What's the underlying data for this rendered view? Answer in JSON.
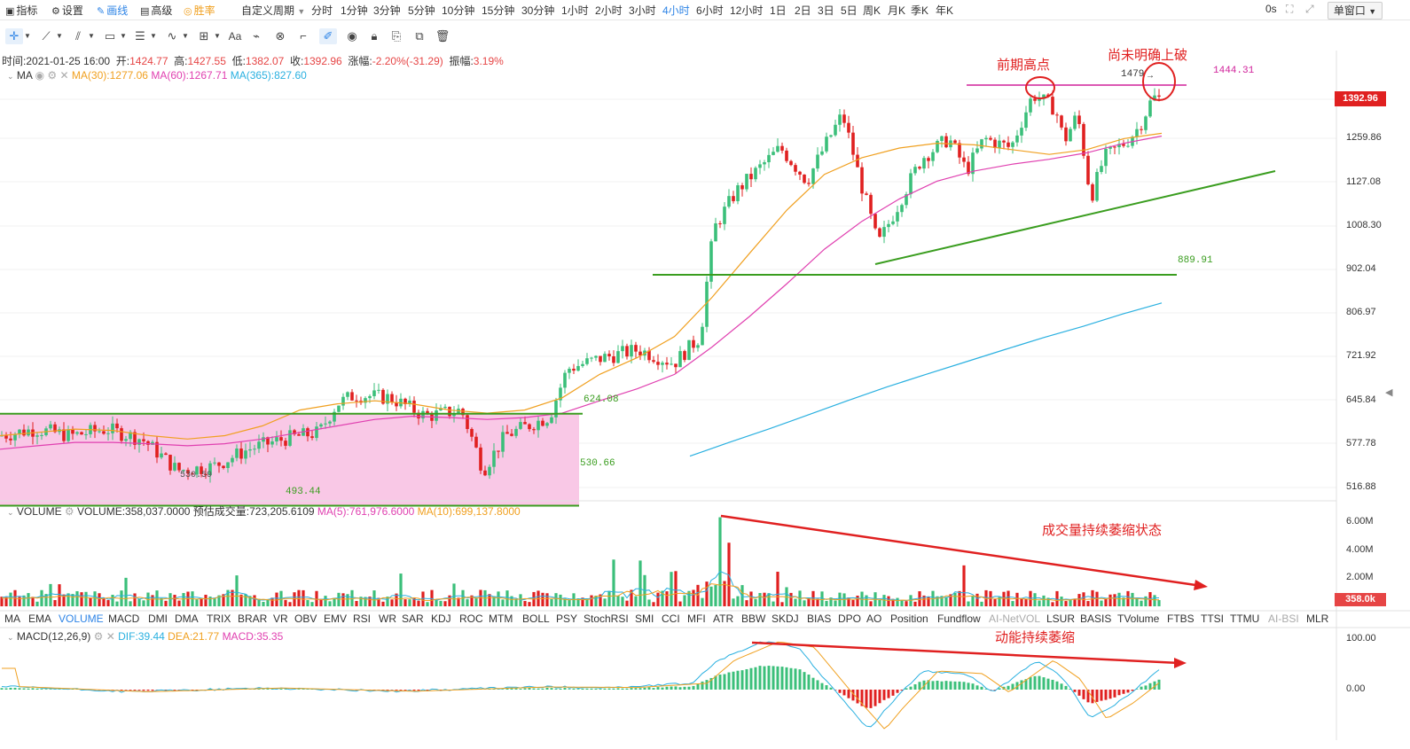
{
  "toolbar": {
    "indicator": "指标",
    "settings": "设置",
    "draw": "画线",
    "advanced": "高级",
    "winrate": "胜率",
    "custom_period": "自定义周期",
    "periods": [
      "分时",
      "1分钟",
      "3分钟",
      "5分钟",
      "10分钟",
      "15分钟",
      "30分钟",
      "1小时",
      "2小时",
      "3小时",
      "4小时",
      "6小时",
      "12小时",
      "1日",
      "2日",
      "3日",
      "5日",
      "周K",
      "月K",
      "季K",
      "年K"
    ],
    "active_period": "4小时",
    "countdown": "0s",
    "window_mode": "单窗口"
  },
  "ohlc": {
    "time_label": "时间:",
    "time": "2021-01-25 16:00",
    "open_label": "开:",
    "open": "1424.77",
    "high_label": "高:",
    "high": "1427.55",
    "low_label": "低:",
    "low": "1382.07",
    "close_label": "收:",
    "close": "1392.96",
    "change_label": "涨幅:",
    "change": "-2.20%(-31.29)",
    "amp_label": "振幅:",
    "amp": "3.19%"
  },
  "ma_legend": {
    "name": "MA",
    "ma30": "MA(30):1277.06",
    "ma60": "MA(60):1267.71",
    "ma365": "MA(365):827.60"
  },
  "volume_legend": {
    "name": "VOLUME",
    "volume": "VOLUME:358,037.0000",
    "est": "预估成交量:723,205.6109",
    "ma5": "MA(5):761,976.6000",
    "ma10": "MA(10):699,137.8000"
  },
  "macd_legend": {
    "name": "MACD(12,26,9)",
    "dif": "DIF:39.44",
    "dea": "DEA:21.77",
    "macd": "MACD:35.35"
  },
  "indicators": [
    "MA",
    "EMA",
    "VOLUME",
    "MACD",
    "DMI",
    "DMA",
    "TRIX",
    "BRAR",
    "VR",
    "OBV",
    "EMV",
    "RSI",
    "WR",
    "SAR",
    "KDJ",
    "ROC",
    "MTM",
    "BOLL",
    "PSY",
    "StochRSI",
    "SMI",
    "CCI",
    "MFI",
    "ATR",
    "BBW",
    "SKDJ",
    "BIAS",
    "DPO",
    "AO",
    "Position",
    "Fundflow",
    "AI-NetVOL",
    "LSUR",
    "BASIS",
    "TVolume",
    "FTBS",
    "TTSI",
    "TTMU",
    "AI-BSI",
    "MLR"
  ],
  "active_indicator": "VOLUME",
  "annotations": {
    "prev_high": "前期高点",
    "not_broken": "尚未明确上破",
    "volume_shrink": "成交量持续萎缩状态",
    "momentum_shrink": "动能持续萎缩",
    "marker_1479": "1479",
    "level_1444": "1444.31",
    "level_889": "889.91",
    "level_624": "624.08",
    "level_530": "530.66",
    "level_493": "493.44",
    "level_530b": "530.59"
  },
  "colors": {
    "up": "#3bbf7a",
    "down": "#e02020",
    "ma30": "#f0a020",
    "ma60": "#e040b0",
    "ma365": "#2ab0e0",
    "accent": "#2e84e6"
  },
  "chart_data": [
    {
      "type": "candlestick",
      "title": "",
      "y_axis_ticks": [
        "1392.96",
        "1259.86",
        "1127.08",
        "1008.30",
        "902.04",
        "806.97",
        "721.92",
        "645.84",
        "577.78",
        "516.88"
      ],
      "current_price": "1392.96",
      "ylim": [
        490,
        1500
      ],
      "y_scale": "log",
      "grid": true,
      "ma_series": [
        {
          "name": "MA(30)",
          "values": [
            590,
            595,
            600,
            598,
            590,
            585,
            590,
            605,
            630,
            640,
            645,
            640,
            630,
            625,
            630,
            650,
            690,
            720,
            760,
            840,
            940,
            1050,
            1150,
            1200,
            1230,
            1245,
            1240,
            1225,
            1210,
            1225,
            1260,
            1277
          ]
        },
        {
          "name": "MA(60)",
          "values": [
            570,
            575,
            580,
            580,
            578,
            575,
            578,
            585,
            595,
            605,
            615,
            620,
            618,
            615,
            618,
            625,
            645,
            665,
            690,
            740,
            800,
            870,
            950,
            1020,
            1080,
            1130,
            1160,
            1180,
            1195,
            1215,
            1245,
            1268
          ]
        },
        {
          "name": "MA(365)",
          "values": [
            560,
            580,
            600,
            622,
            645,
            668,
            690,
            712,
            735,
            758,
            780,
            805,
            828
          ]
        }
      ],
      "horizontal_levels": [
        1444.31,
        889.91,
        624.08,
        493.44
      ],
      "range_box": {
        "from": 493.44,
        "to": 624.08
      }
    },
    {
      "type": "bar",
      "title": "",
      "y_axis_ticks": [
        "6.00M",
        "4.00M",
        "2.00M"
      ],
      "current_value": "358.0k",
      "ylim": [
        0,
        6600000
      ]
    },
    {
      "type": "bar",
      "title": "",
      "y_axis_ticks": [
        "100.00",
        "0.00"
      ],
      "ylim": [
        -90,
        120
      ]
    }
  ]
}
